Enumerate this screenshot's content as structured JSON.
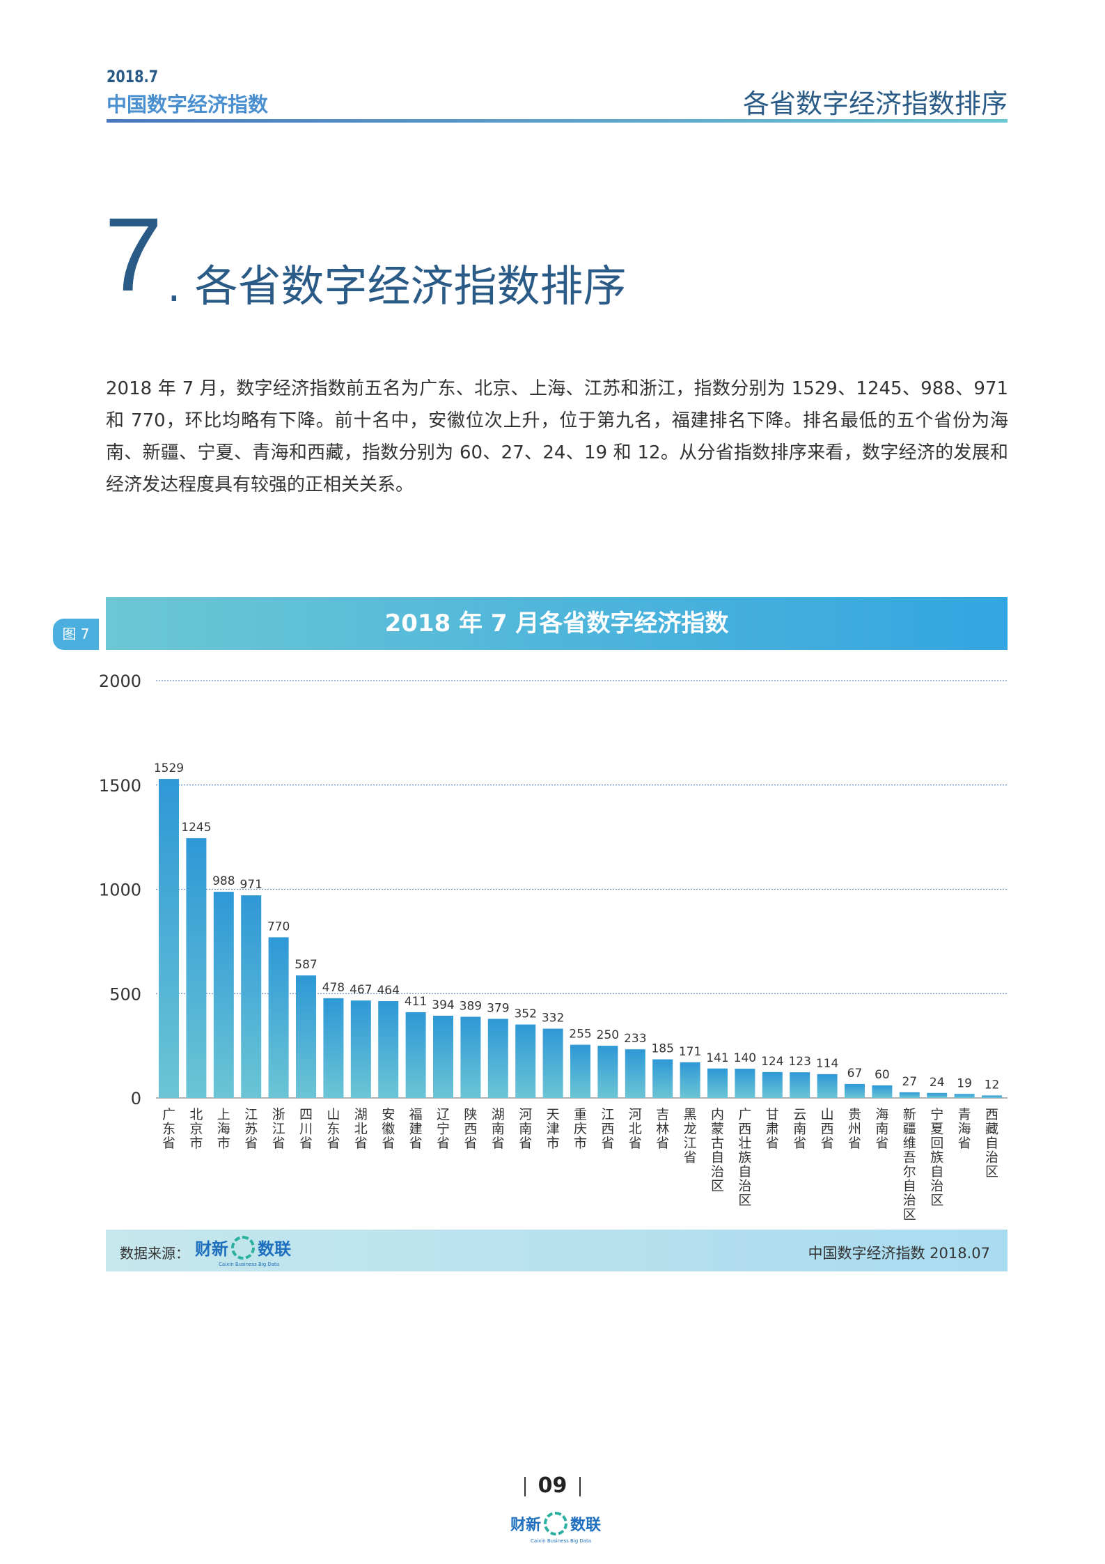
{
  "header": {
    "date": "2018.7",
    "brand": "中国数字经济指数",
    "section": "各省数字经济指数排序"
  },
  "section": {
    "number": "7",
    "dot": ".",
    "title": "各省数字经济指数排序"
  },
  "paragraph": "2018 年 7 月，数字经济指数前五名为广东、北京、上海、江苏和浙江，指数分别为 1529、1245、988、971 和 770，环比均略有下降。前十名中，安徽位次上升，位于第九名，福建排名下降。排名最低的五个省份为海南、新疆、宁夏、青海和西藏，指数分别为 60、27、24、19 和 12。从分省指数排序来看，数字经济的发展和经济发达程度具有较强的正相关关系。",
  "figure": {
    "tab": "图 7",
    "title": "2018 年 7 月各省数字经济指数"
  },
  "chart_data": {
    "type": "bar",
    "title": "2018 年 7 月各省数字经济指数",
    "categories": [
      "广东省",
      "北京市",
      "上海市",
      "江苏省",
      "浙江省",
      "四川省",
      "山东省",
      "湖北省",
      "安徽省",
      "福建省",
      "辽宁省",
      "陕西省",
      "湖南省",
      "河南省",
      "天津市",
      "重庆市",
      "江西省",
      "河北省",
      "吉林省",
      "黑龙江省",
      "内蒙古自治区",
      "广西壮族自治区",
      "甘肃省",
      "云南省",
      "山西省",
      "贵州省",
      "海南省",
      "新疆维吾尔自治区",
      "宁夏回族自治区",
      "青海省",
      "西藏自治区"
    ],
    "values": [
      1529,
      1245,
      988,
      971,
      770,
      587,
      478,
      467,
      464,
      411,
      394,
      389,
      379,
      352,
      332,
      255,
      250,
      233,
      185,
      171,
      141,
      140,
      124,
      123,
      114,
      67,
      60,
      27,
      24,
      19,
      12
    ],
    "ylim": [
      0,
      2000
    ],
    "yticks": [
      0,
      500,
      1000,
      1500,
      2000
    ],
    "grid": true,
    "colors": {
      "bar_top": "#2e98d6",
      "bar_bottom": "#6cc5d5",
      "grid": "#6a8fc0"
    }
  },
  "source": {
    "label": "数据来源：",
    "logo_text_left": "财新",
    "logo_text_right": "数联",
    "logo_sub": "Caixin Business Big Data",
    "right": "中国数字经济指数 2018.07"
  },
  "footer": {
    "page": "09",
    "logo_text_left": "财新",
    "logo_text_right": "数联",
    "logo_sub": "Caixin Business Big Data"
  }
}
